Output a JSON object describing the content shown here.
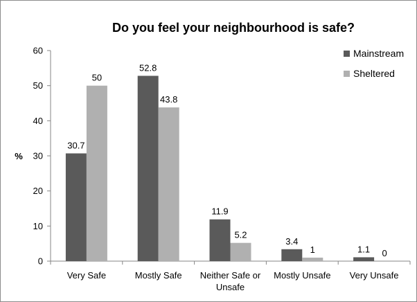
{
  "chart_data": {
    "type": "bar",
    "title": "Do you feel your neighbourhood is safe?",
    "ylabel": "%",
    "xlabel": "",
    "ylim": [
      0,
      60
    ],
    "yticks": [
      0,
      10,
      20,
      30,
      40,
      50,
      60
    ],
    "categories": [
      [
        "Very Safe"
      ],
      [
        "Mostly Safe"
      ],
      [
        "Neither Safe or",
        "Unsafe"
      ],
      [
        "Mostly Unsafe"
      ],
      [
        "Very Unsafe"
      ]
    ],
    "series": [
      {
        "name": "Mainstream",
        "color": "#5a5a5a",
        "values": [
          30.7,
          52.8,
          11.9,
          3.4,
          1.1
        ],
        "labels": [
          "30.7",
          "52.8",
          "11.9",
          "3.4",
          "1.1"
        ]
      },
      {
        "name": "Sheltered",
        "color": "#b0b0b0",
        "values": [
          50,
          43.8,
          5.2,
          1,
          0
        ],
        "labels": [
          "50",
          "43.8",
          "5.2",
          "1",
          "0"
        ]
      }
    ],
    "legend_position": "top-right",
    "grid": false
  }
}
